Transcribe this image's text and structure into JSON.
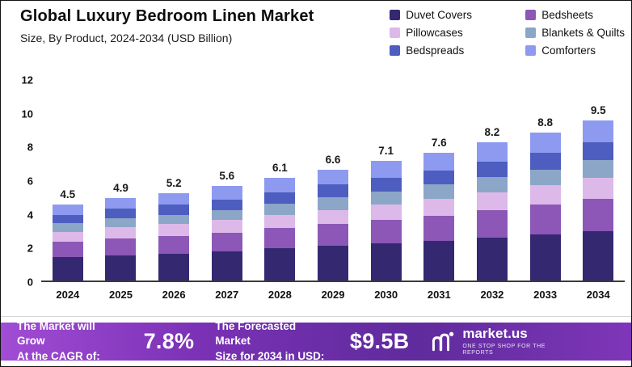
{
  "header": {
    "title": "Global Luxury Bedroom Linen Market",
    "subtitle": "Size, By Product, 2024-2034 (USD Billion)"
  },
  "chart_data": {
    "type": "bar",
    "stacked": true,
    "title": "Global Luxury Bedroom Linen Market",
    "subtitle": "Size, By Product, 2024-2034 (USD Billion)",
    "unit": "USD Billion",
    "categories": [
      "2024",
      "2025",
      "2026",
      "2027",
      "2028",
      "2029",
      "2030",
      "2031",
      "2032",
      "2033",
      "2034"
    ],
    "totals": [
      4.5,
      4.9,
      5.2,
      5.6,
      6.1,
      6.6,
      7.1,
      7.6,
      8.2,
      8.8,
      9.5
    ],
    "series": [
      {
        "name": "Duvet Covers",
        "color": "#342870",
        "values": [
          1.4,
          1.5,
          1.6,
          1.75,
          1.9,
          2.05,
          2.2,
          2.35,
          2.55,
          2.75,
          2.95
        ]
      },
      {
        "name": "Bedsheets",
        "color": "#8c57b6",
        "values": [
          0.9,
          1.0,
          1.05,
          1.1,
          1.2,
          1.3,
          1.4,
          1.5,
          1.65,
          1.75,
          1.9
        ]
      },
      {
        "name": "Pillowcases",
        "color": "#ddb9e9",
        "values": [
          0.6,
          0.65,
          0.7,
          0.75,
          0.8,
          0.85,
          0.9,
          1.0,
          1.05,
          1.15,
          1.25
        ]
      },
      {
        "name": "Blankets & Quilts",
        "color": "#8ca6c8",
        "values": [
          0.5,
          0.55,
          0.55,
          0.6,
          0.65,
          0.75,
          0.8,
          0.85,
          0.9,
          0.95,
          1.05
        ]
      },
      {
        "name": "Bedspreads",
        "color": "#4d5ec0",
        "values": [
          0.5,
          0.55,
          0.6,
          0.6,
          0.7,
          0.75,
          0.8,
          0.85,
          0.9,
          1.0,
          1.05
        ]
      },
      {
        "name": "Comforters",
        "color": "#8e9af0",
        "values": [
          0.6,
          0.65,
          0.7,
          0.8,
          0.85,
          0.9,
          1.0,
          1.05,
          1.15,
          1.2,
          1.3
        ]
      }
    ],
    "ylim": [
      0,
      12
    ],
    "yticks": [
      0,
      2,
      4,
      6,
      8,
      10,
      12
    ],
    "grid": false,
    "legend_position": "top-right"
  },
  "footer": {
    "cagr_label": "The Market will Grow\nAt the CAGR of:",
    "cagr_value": "7.8%",
    "forecast_label": "The Forecasted Market\nSize for 2034 in USD:",
    "forecast_value": "$9.5B",
    "brand": "market.us",
    "brand_tagline": "ONE STOP SHOP FOR THE REPORTS",
    "gradient": [
      "#a14cd4",
      "#7a31b5",
      "#5f2b9d",
      "#7e36b8"
    ]
  }
}
